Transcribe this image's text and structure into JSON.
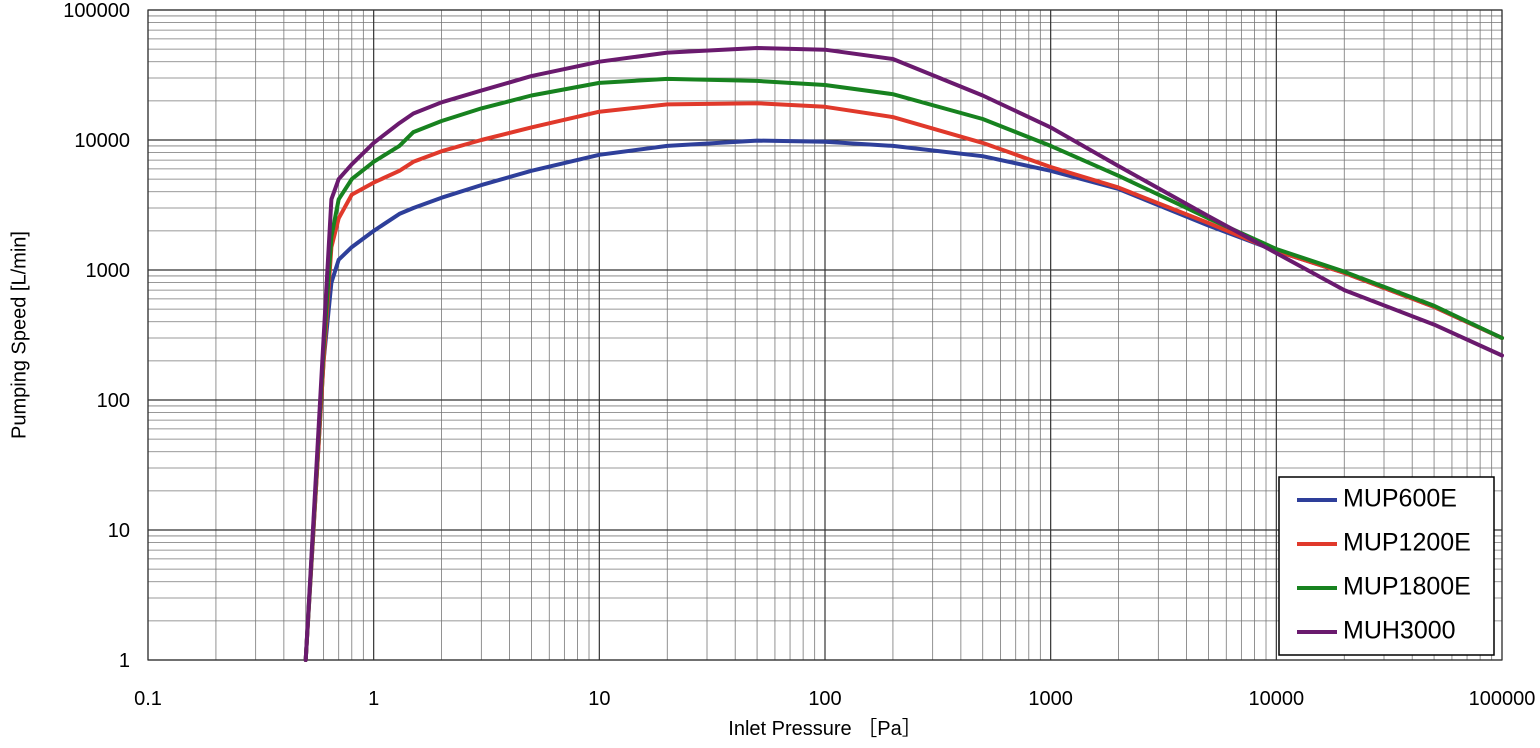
{
  "chart_data": {
    "type": "line",
    "x_label": "Inlet Pressure ［Pa］",
    "y_label": "Pumping Speed [L/min]",
    "x": [
      0.5,
      0.6,
      0.65,
      0.7,
      0.8,
      1,
      1.3,
      1.5,
      2,
      3,
      5,
      10,
      20,
      50,
      100,
      200,
      500,
      1000,
      2000,
      5000,
      10000,
      20000,
      50000,
      100000
    ],
    "series": [
      {
        "name": "MUP600E",
        "color": "#2e3f9a",
        "values": [
          1,
          200,
          800,
          1200,
          1500,
          2000,
          2700,
          3000,
          3600,
          4500,
          5800,
          7700,
          9000,
          9900,
          9700,
          9000,
          7500,
          5800,
          4200,
          2200,
          1400,
          950,
          520,
          300
        ]
      },
      {
        "name": "MUP1200E",
        "color": "#e0392b",
        "values": [
          1,
          200,
          1500,
          2500,
          3800,
          4700,
          5800,
          6800,
          8200,
          10000,
          12500,
          16500,
          18800,
          19200,
          18000,
          15000,
          9500,
          6200,
          4300,
          2300,
          1400,
          950,
          520,
          300
        ]
      },
      {
        "name": "MUP1800E",
        "color": "#17821f",
        "values": [
          1,
          250,
          1800,
          3500,
          5000,
          6800,
          9000,
          11500,
          14000,
          17500,
          22000,
          27500,
          29500,
          28500,
          26500,
          22500,
          14500,
          9000,
          5300,
          2500,
          1450,
          970,
          530,
          300
        ]
      },
      {
        "name": "MUH3000",
        "color": "#6a1a6e",
        "values": [
          1,
          300,
          3500,
          5000,
          6500,
          9500,
          13500,
          16000,
          19500,
          24000,
          31000,
          40000,
          47000,
          51000,
          49500,
          42000,
          22000,
          12500,
          6300,
          2600,
          1350,
          700,
          380,
          220
        ]
      }
    ],
    "x_log": true,
    "y_log": true,
    "xlim": [
      0.1,
      100000
    ],
    "ylim": [
      1,
      100000
    ],
    "xticks": [
      0.1,
      1,
      10,
      100,
      1000,
      10000,
      100000
    ],
    "yticks": [
      1,
      10,
      100,
      1000,
      10000,
      100000
    ],
    "grid": true,
    "minor_grid": true,
    "legend": "lower right"
  }
}
